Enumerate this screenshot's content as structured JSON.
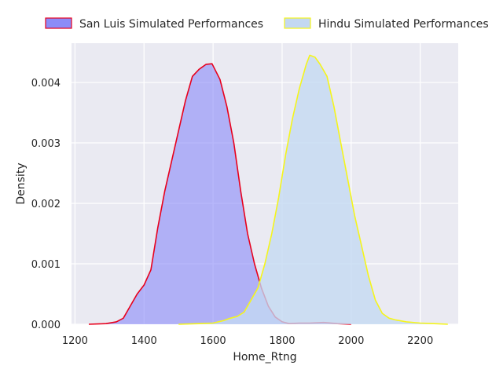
{
  "chart_data": {
    "type": "area",
    "title": "",
    "xlabel": "Home_Rtng",
    "ylabel": "Density",
    "xlim": [
      1190,
      2310
    ],
    "ylim": [
      0,
      0.00465
    ],
    "x_ticks": [
      1200,
      1400,
      1600,
      1800,
      2000,
      2200
    ],
    "y_ticks": [
      0,
      0.001,
      0.002,
      0.003,
      0.004
    ],
    "x_tick_labels": [
      "1200",
      "1400",
      "1600",
      "1800",
      "2000",
      "2200"
    ],
    "y_tick_labels": [
      "0.000",
      "0.001",
      "0.002",
      "0.003",
      "0.004"
    ],
    "grid": true,
    "legend_position": "top",
    "series": [
      {
        "name": "San Luis Simulated Performances",
        "fill_color": "#8c8cf8",
        "line_color": "#e8001c",
        "points": [
          [
            1240,
            0
          ],
          [
            1290,
            1e-05
          ],
          [
            1320,
            4e-05
          ],
          [
            1340,
            0.0001
          ],
          [
            1360,
            0.0003
          ],
          [
            1380,
            0.0005
          ],
          [
            1400,
            0.00065
          ],
          [
            1420,
            0.0009
          ],
          [
            1440,
            0.0016
          ],
          [
            1460,
            0.0022
          ],
          [
            1480,
            0.0027
          ],
          [
            1500,
            0.0032
          ],
          [
            1520,
            0.0037
          ],
          [
            1540,
            0.0041
          ],
          [
            1560,
            0.00422
          ],
          [
            1580,
            0.0043
          ],
          [
            1597,
            0.00431
          ],
          [
            1620,
            0.00405
          ],
          [
            1640,
            0.0036
          ],
          [
            1660,
            0.003
          ],
          [
            1680,
            0.0022
          ],
          [
            1700,
            0.0015
          ],
          [
            1720,
            0.001
          ],
          [
            1740,
            0.0006
          ],
          [
            1760,
            0.0003
          ],
          [
            1780,
            0.00012
          ],
          [
            1800,
            4e-05
          ],
          [
            1820,
            1e-05
          ],
          [
            1850,
            2e-05
          ],
          [
            1880,
            2e-05
          ],
          [
            1920,
            3e-05
          ],
          [
            1960,
            1e-05
          ],
          [
            2000,
            0
          ]
        ]
      },
      {
        "name": "Hindu Simulated Performances",
        "fill_color": "#c3d8f2",
        "line_color": "#f5f51b",
        "points": [
          [
            1500,
            0
          ],
          [
            1560,
            1e-05
          ],
          [
            1600,
            2e-05
          ],
          [
            1630,
            6e-05
          ],
          [
            1650,
            0.0001
          ],
          [
            1670,
            0.00013
          ],
          [
            1690,
            0.0002
          ],
          [
            1710,
            0.0004
          ],
          [
            1730,
            0.0006
          ],
          [
            1750,
            0.001
          ],
          [
            1770,
            0.0015
          ],
          [
            1790,
            0.0021
          ],
          [
            1810,
            0.0028
          ],
          [
            1830,
            0.0034
          ],
          [
            1850,
            0.0039
          ],
          [
            1870,
            0.0043
          ],
          [
            1880,
            0.00445
          ],
          [
            1895,
            0.00442
          ],
          [
            1910,
            0.0043
          ],
          [
            1930,
            0.0041
          ],
          [
            1950,
            0.0036
          ],
          [
            1970,
            0.003
          ],
          [
            1990,
            0.0024
          ],
          [
            2010,
            0.0018
          ],
          [
            2030,
            0.0013
          ],
          [
            2050,
            0.0008
          ],
          [
            2070,
            0.0004
          ],
          [
            2090,
            0.00018
          ],
          [
            2110,
            0.0001
          ],
          [
            2130,
            7e-05
          ],
          [
            2160,
            4e-05
          ],
          [
            2200,
            2e-05
          ],
          [
            2240,
            1e-05
          ],
          [
            2280,
            0
          ]
        ]
      }
    ]
  }
}
